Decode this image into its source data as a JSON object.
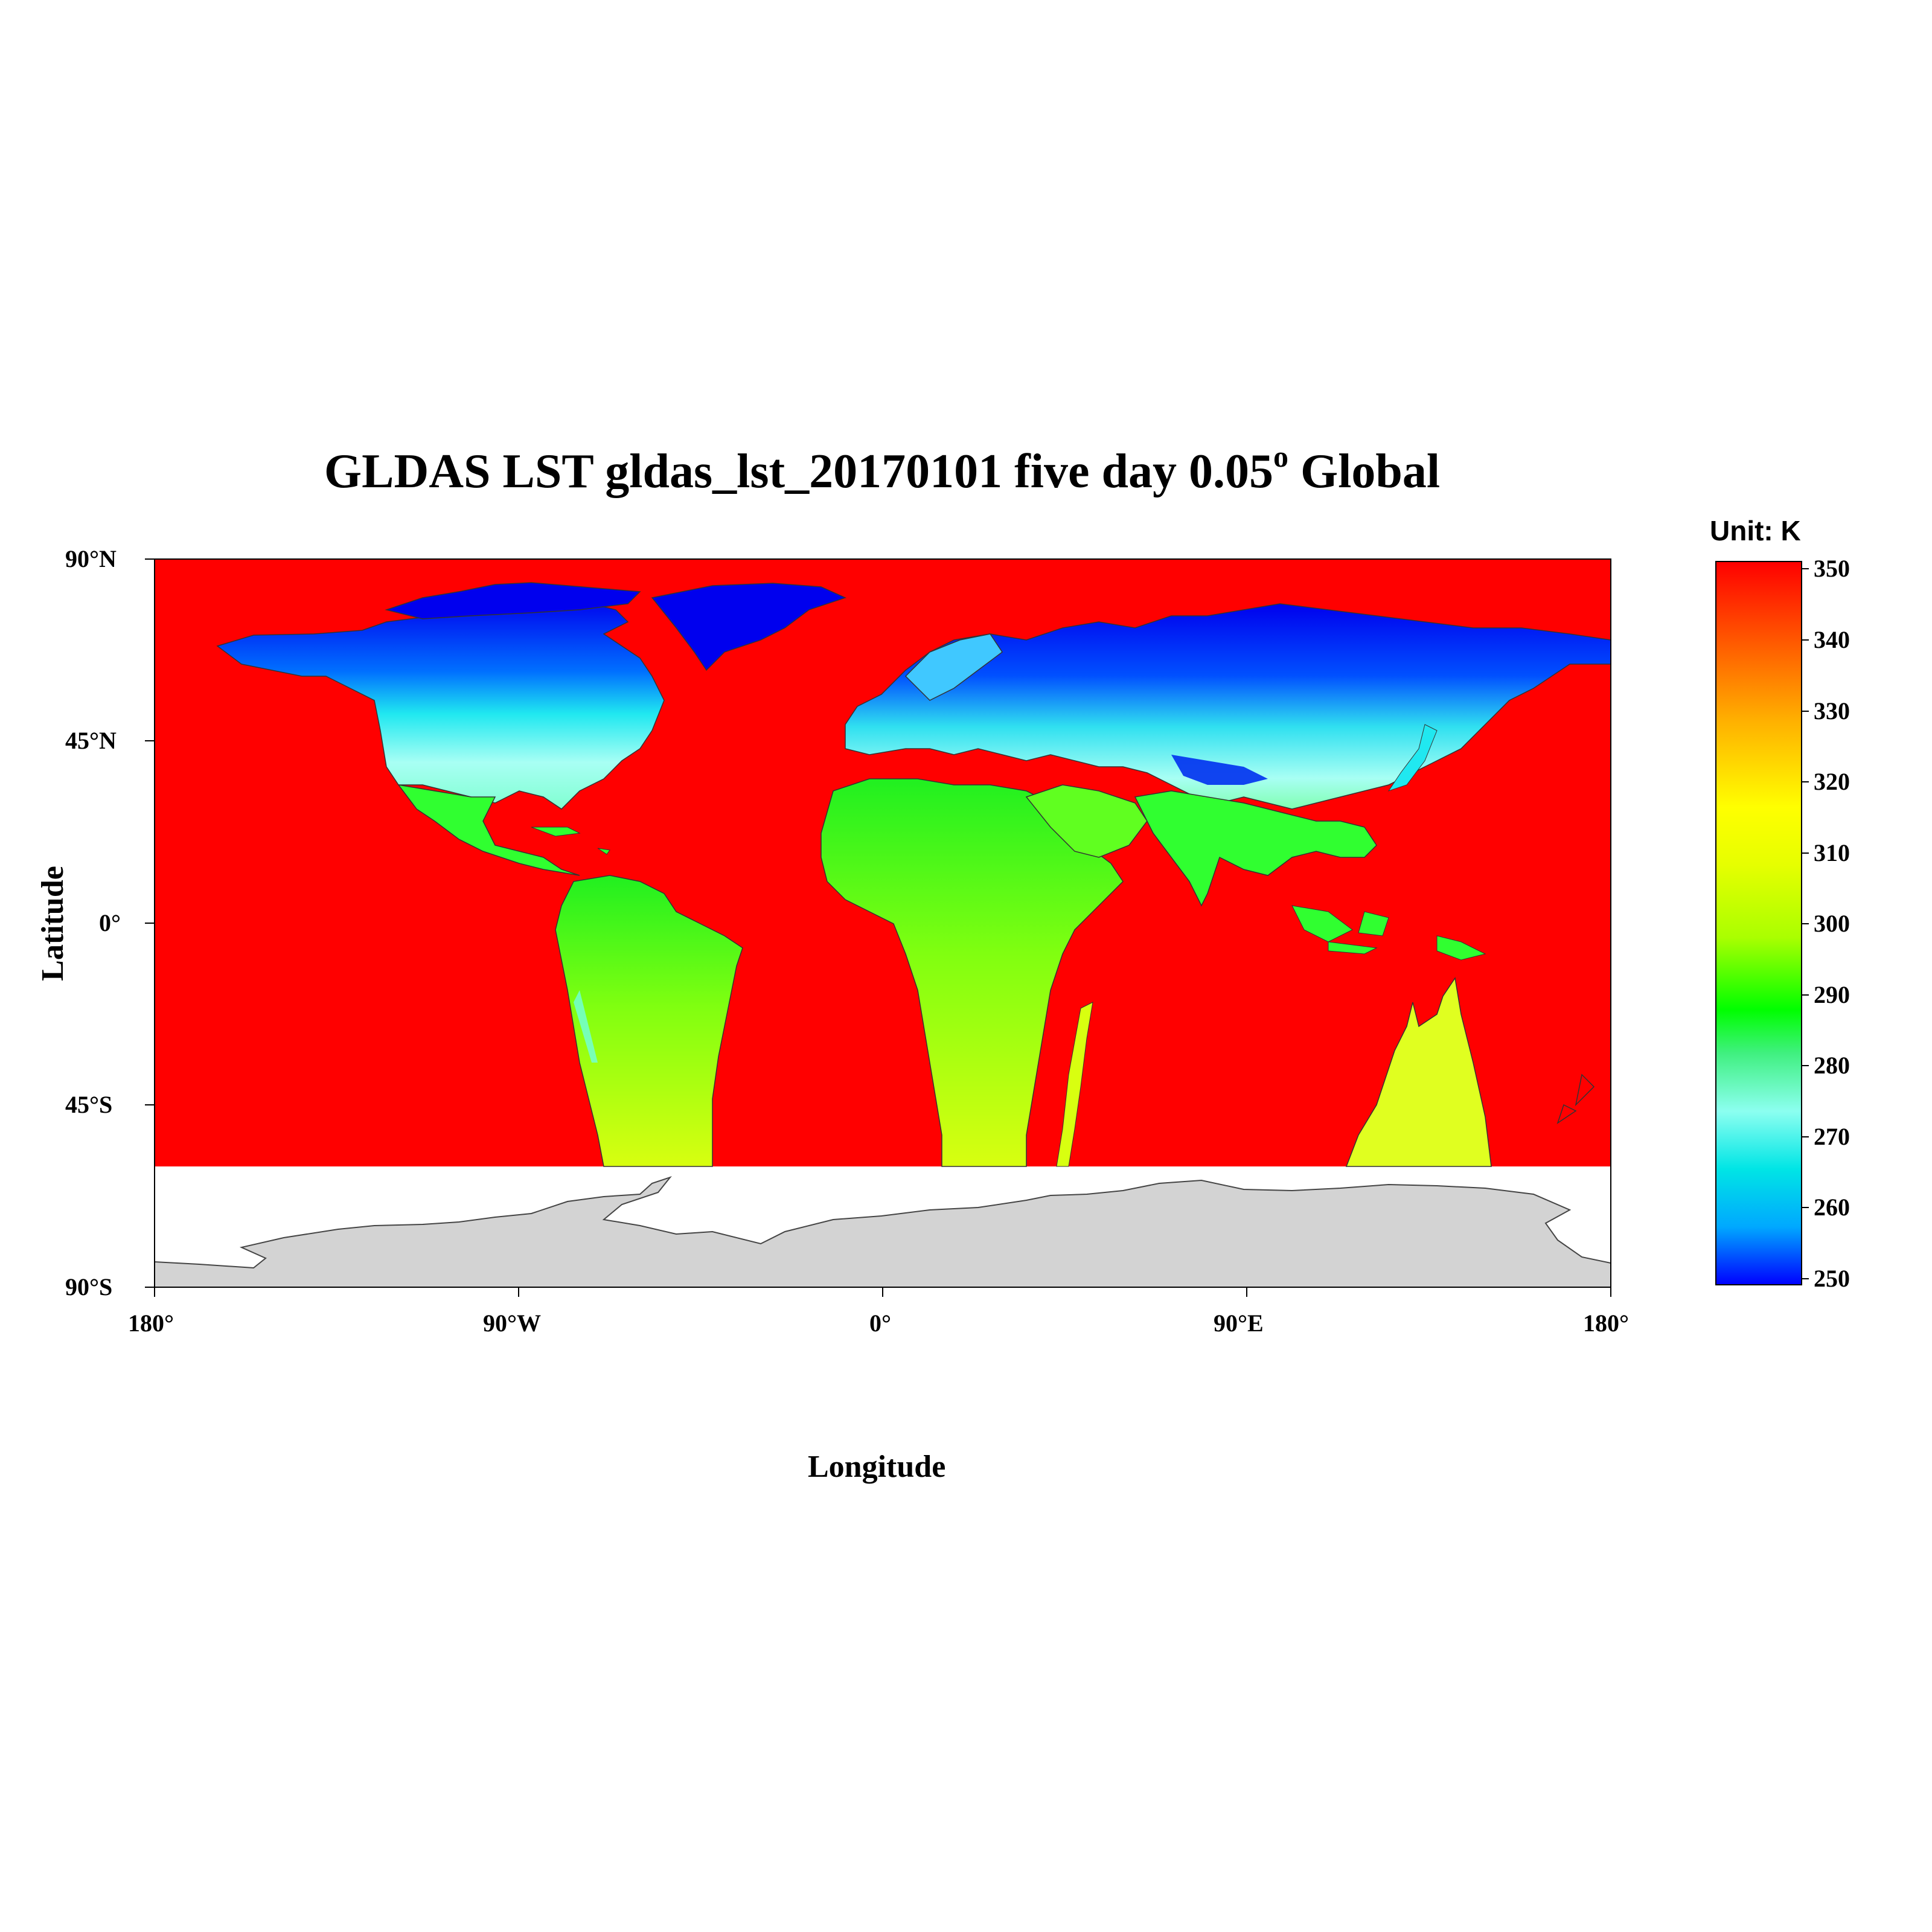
{
  "title": {
    "main": "GLDAS LST  gldas_lst_20170101  five day 0.05",
    "superscript": "o",
    "suffix": " Global"
  },
  "axes": {
    "xlabel": "Longitude",
    "ylabel": "Latitude",
    "x_ticks": [
      "180°",
      "90°W",
      "0°",
      "90°E",
      "180°"
    ],
    "y_ticks": [
      "90°N",
      "45°N",
      "0°",
      "45°S",
      "90°S"
    ],
    "x_range": [
      -180,
      180
    ],
    "y_range": [
      -90,
      90
    ]
  },
  "colorbar": {
    "unit_label": "Unit: K",
    "ticks": [
      "350",
      "340",
      "330",
      "320",
      "310",
      "300",
      "290",
      "280",
      "270",
      "260",
      "250"
    ],
    "range": [
      250,
      350
    ],
    "colors": [
      "#0000ff",
      "#00e5e5",
      "#8cfff0",
      "#00ff00",
      "#d4ff00",
      "#ffff00",
      "#ffa500",
      "#ff0000"
    ]
  },
  "chart_data": {
    "type": "heatmap",
    "variable": "LST",
    "units": "K",
    "colorscale_min": 250,
    "colorscale_max": 350,
    "ocean_fill_color": "#ff0000",
    "antarctica_fill_color": "#d3d3d3",
    "no_data_latitude_below": -60
  }
}
